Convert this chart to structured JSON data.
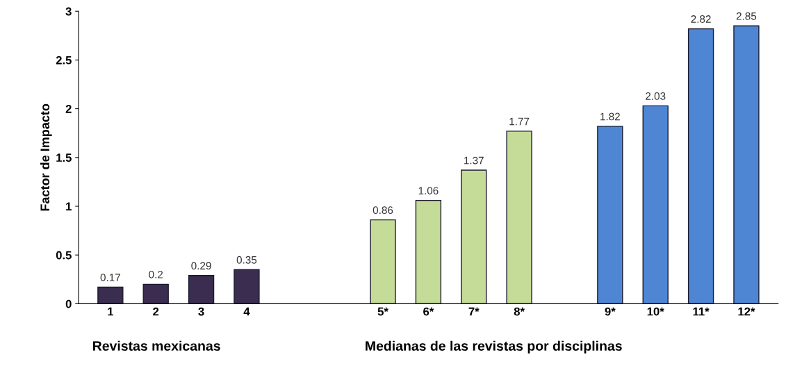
{
  "chart_data": {
    "type": "bar",
    "ylabel": "Factor de Impacto",
    "categories": [
      "1",
      "2",
      "3",
      "4",
      null,
      null,
      "5*",
      "6*",
      "7*",
      "8*",
      null,
      "9*",
      "10*",
      "11*",
      "12*"
    ],
    "values": [
      0.17,
      0.2,
      0.29,
      0.35,
      null,
      null,
      0.86,
      1.06,
      1.37,
      1.77,
      null,
      1.82,
      2.03,
      2.82,
      2.85
    ],
    "colors": [
      "#3b2d4f",
      "#3b2d4f",
      "#3b2d4f",
      "#3b2d4f",
      null,
      null,
      "#c5db98",
      "#c5db98",
      "#c5db98",
      "#c5db98",
      null,
      "#4f86d4",
      "#4f86d4",
      "#4f86d4",
      "#4f86d4"
    ],
    "ylim": [
      0,
      3
    ],
    "yticks": [
      0,
      0.5,
      1,
      1.5,
      2,
      2.5,
      3
    ],
    "grid": false,
    "data_labels": true,
    "annotations": [
      "Revistas mexicanas",
      "Medianas de las revistas por disciplinas"
    ]
  }
}
